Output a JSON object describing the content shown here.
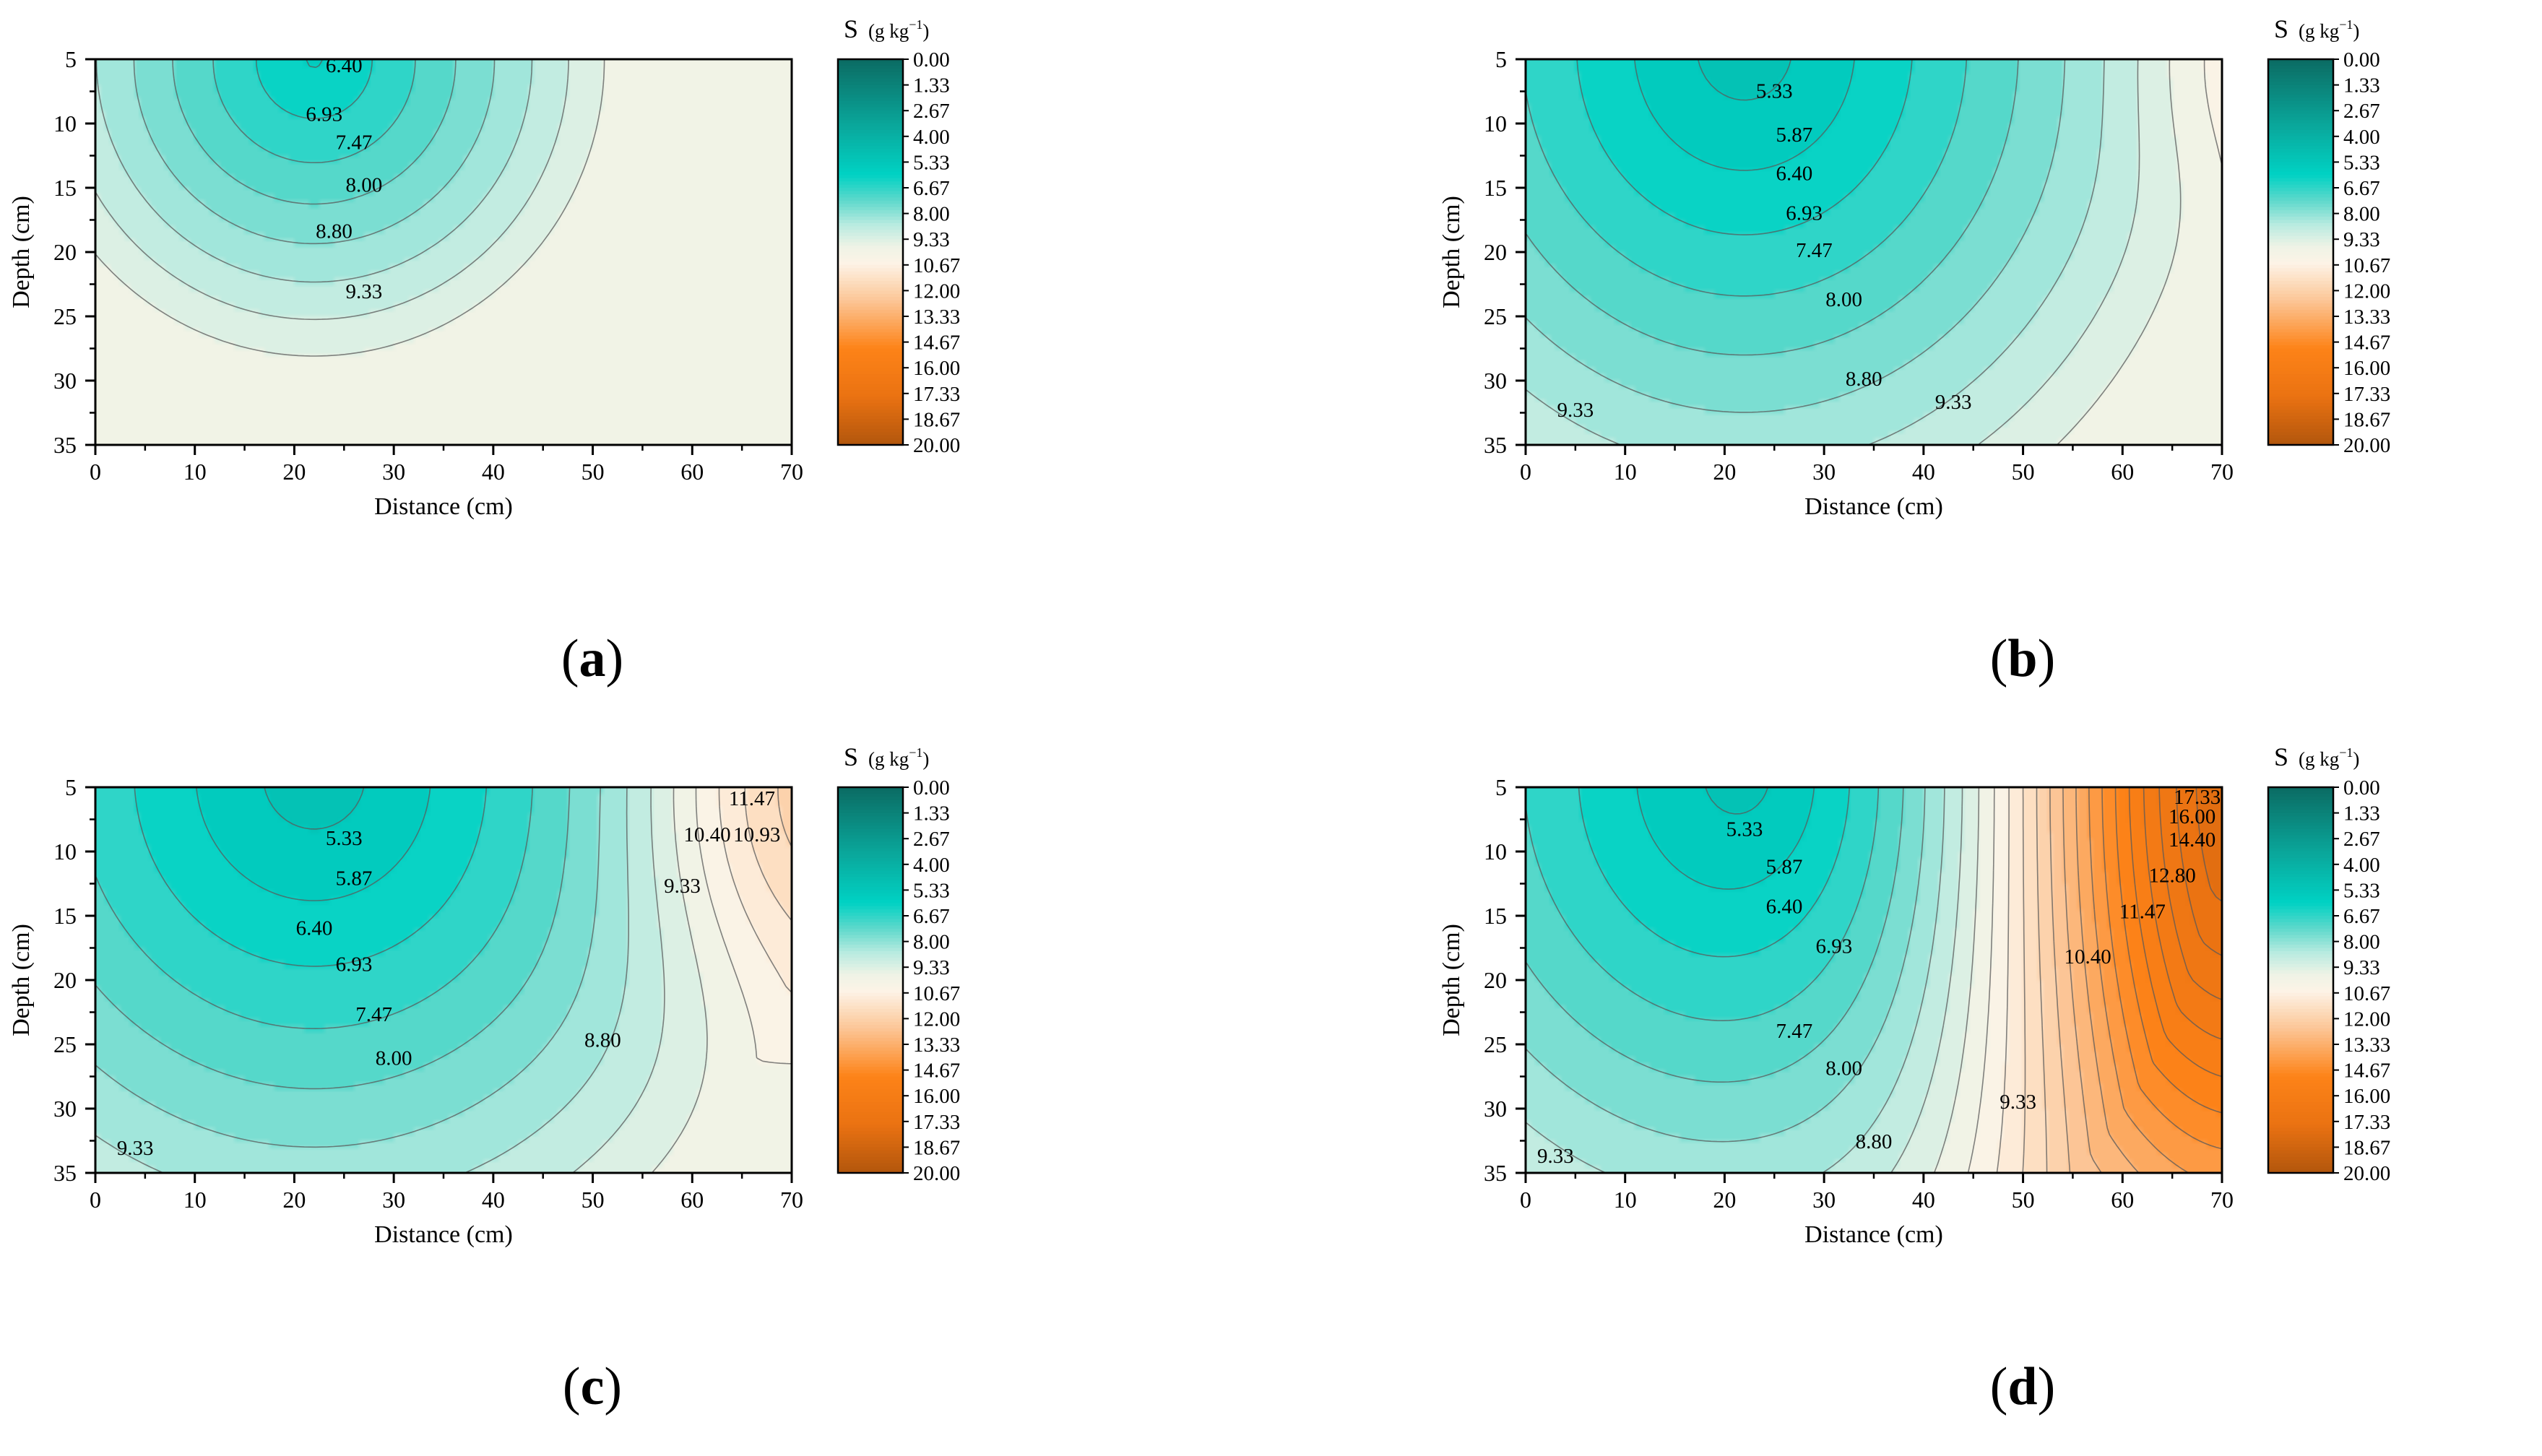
{
  "chart_data": [
    {
      "panel_label": "a",
      "type": "contour",
      "xlabel": "Distance (cm)",
      "ylabel": "Depth (cm)",
      "xlim": [
        0,
        70
      ],
      "ylim": [
        5,
        35
      ],
      "xticks": [
        "0",
        "10",
        "20",
        "30",
        "40",
        "50",
        "60",
        "70"
      ],
      "yticks": [
        "5",
        "10",
        "15",
        "20",
        "25",
        "30",
        "35"
      ],
      "field": {
        "cx": 22,
        "cy": 5,
        "rx": 24,
        "ry": 19,
        "vmin": 5.8,
        "vmax": 9.9,
        "orange": {
          "x0": 70,
          "cy": 5,
          "amp": 0,
          "w": 20,
          "depth": 20
        }
      },
      "contour_labels": [
        {
          "text": "6.40",
          "x": 25,
          "y": 6
        },
        {
          "text": "6.93",
          "x": 23,
          "y": 9.8
        },
        {
          "text": "7.47",
          "x": 26,
          "y": 12
        },
        {
          "text": "8.00",
          "x": 27,
          "y": 15.3
        },
        {
          "text": "8.80",
          "x": 24,
          "y": 18.9
        },
        {
          "text": "9.33",
          "x": 27,
          "y": 23.6
        }
      ]
    },
    {
      "panel_label": "b",
      "type": "contour",
      "xlabel": "Distance (cm)",
      "ylabel": "Depth (cm)",
      "xlim": [
        0,
        70
      ],
      "ylim": [
        5,
        35
      ],
      "xticks": [
        "0",
        "10",
        "20",
        "30",
        "40",
        "50",
        "60",
        "70"
      ],
      "yticks": [
        "5",
        "10",
        "15",
        "20",
        "25",
        "30",
        "35"
      ],
      "field": {
        "cx": 22,
        "cy": 4,
        "rx": 38,
        "ry": 33,
        "vmin": 5.0,
        "vmax": 9.8,
        "orange": {
          "x0": 70,
          "cy": 5,
          "amp": 0.7,
          "w": 10,
          "depth": 10
        }
      },
      "contour_labels": [
        {
          "text": "5.33",
          "x": 25,
          "y": 8
        },
        {
          "text": "5.87",
          "x": 27,
          "y": 11.4
        },
        {
          "text": "6.40",
          "x": 27,
          "y": 14.4
        },
        {
          "text": "6.93",
          "x": 28,
          "y": 17.5
        },
        {
          "text": "7.47",
          "x": 29,
          "y": 20.4
        },
        {
          "text": "8.00",
          "x": 32,
          "y": 24.2
        },
        {
          "text": "8.80",
          "x": 34,
          "y": 30.4
        },
        {
          "text": "9.33",
          "x": 5,
          "y": 32.8
        },
        {
          "text": "9.33",
          "x": 43,
          "y": 32.2
        }
      ]
    },
    {
      "panel_label": "c",
      "type": "contour",
      "xlabel": "Distance (cm)",
      "ylabel": "Depth (cm)",
      "xlim": [
        0,
        70
      ],
      "ylim": [
        5,
        35
      ],
      "xticks": [
        "0",
        "10",
        "20",
        "30",
        "40",
        "50",
        "60",
        "70"
      ],
      "yticks": [
        "5",
        "10",
        "15",
        "20",
        "25",
        "30",
        "35"
      ],
      "field": {
        "cx": 22,
        "cy": 4,
        "rx": 40,
        "ry": 33,
        "vmin": 5.0,
        "vmax": 9.7,
        "orange": {
          "x0": 70,
          "cy": 5,
          "amp": 2.6,
          "w": 16,
          "depth": 16
        }
      },
      "contour_labels": [
        {
          "text": "5.33",
          "x": 25,
          "y": 9.5
        },
        {
          "text": "5.87",
          "x": 26,
          "y": 12.6
        },
        {
          "text": "6.40",
          "x": 22,
          "y": 16.5
        },
        {
          "text": "6.93",
          "x": 26,
          "y": 19.3
        },
        {
          "text": "7.47",
          "x": 28,
          "y": 23.2
        },
        {
          "text": "8.00",
          "x": 30,
          "y": 26.6
        },
        {
          "text": "8.80",
          "x": 51,
          "y": 25.2
        },
        {
          "text": "9.33",
          "x": 59,
          "y": 13.2
        },
        {
          "text": "9.33",
          "x": 4,
          "y": 33.6
        },
        {
          "text": "10.40",
          "x": 61.5,
          "y": 9.2
        },
        {
          "text": "10.93",
          "x": 66.5,
          "y": 9.2
        },
        {
          "text": "11.47",
          "x": 66,
          "y": 6.4
        }
      ]
    },
    {
      "panel_label": "d",
      "type": "contour",
      "xlabel": "Distance (cm)",
      "ylabel": "Depth (cm)",
      "xlim": [
        0,
        70
      ],
      "ylim": [
        5,
        35
      ],
      "xticks": [
        "0",
        "10",
        "20",
        "30",
        "40",
        "50",
        "60",
        "70"
      ],
      "yticks": [
        "5",
        "10",
        "15",
        "20",
        "25",
        "30",
        "35"
      ],
      "field": {
        "cx": 22,
        "cy": 4,
        "rx": 37,
        "ry": 33,
        "vmin": 5.0,
        "vmax": 9.7,
        "orange": {
          "x0": 72,
          "cy": 4,
          "amp": 8.5,
          "w": 24,
          "depth": 38
        }
      },
      "contour_labels": [
        {
          "text": "5.33",
          "x": 22,
          "y": 8.8
        },
        {
          "text": "5.87",
          "x": 26,
          "y": 11.7
        },
        {
          "text": "6.40",
          "x": 26,
          "y": 14.8
        },
        {
          "text": "6.93",
          "x": 31,
          "y": 17.9
        },
        {
          "text": "7.47",
          "x": 27,
          "y": 24.5
        },
        {
          "text": "8.00",
          "x": 32,
          "y": 27.4
        },
        {
          "text": "8.80",
          "x": 35,
          "y": 33.1
        },
        {
          "text": "9.33",
          "x": 49.5,
          "y": 30
        },
        {
          "text": "9.33",
          "x": 3,
          "y": 34.2
        },
        {
          "text": "10.40",
          "x": 56.5,
          "y": 18.7
        },
        {
          "text": "11.47",
          "x": 62,
          "y": 15.2
        },
        {
          "text": "12.80",
          "x": 65,
          "y": 12.4
        },
        {
          "text": "14.40",
          "x": 67,
          "y": 9.6
        },
        {
          "text": "16.00",
          "x": 67,
          "y": 7.8
        },
        {
          "text": "17.33",
          "x": 67.5,
          "y": 6.3
        }
      ]
    }
  ],
  "colorbar": {
    "title": "S",
    "unit_prefix": "(g kg",
    "unit_sup": "−1",
    "unit_suffix": ")",
    "labels": [
      "0.00",
      "1.33",
      "2.67",
      "4.00",
      "5.33",
      "6.67",
      "8.00",
      "9.33",
      "10.67",
      "12.00",
      "13.33",
      "14.67",
      "16.00",
      "17.33",
      "18.67",
      "20.00"
    ]
  },
  "colors": {
    "scale": [
      {
        "v": 0.0,
        "c": "#0b6b63"
      },
      {
        "v": 3.5,
        "c": "#0aa89c"
      },
      {
        "v": 6.0,
        "c": "#00d2c4"
      },
      {
        "v": 7.3,
        "c": "#5cd8cb"
      },
      {
        "v": 8.6,
        "c": "#b9ebe0"
      },
      {
        "v": 9.7,
        "c": "#eef3e6"
      },
      {
        "v": 10.6,
        "c": "#fdf3e6"
      },
      {
        "v": 12.5,
        "c": "#fcc697"
      },
      {
        "v": 15.0,
        "c": "#fd8318"
      },
      {
        "v": 17.5,
        "c": "#ea7212"
      },
      {
        "v": 20.0,
        "c": "#b2560d"
      }
    ],
    "contour_line": "#5a5a5a",
    "axis": "#000000"
  }
}
